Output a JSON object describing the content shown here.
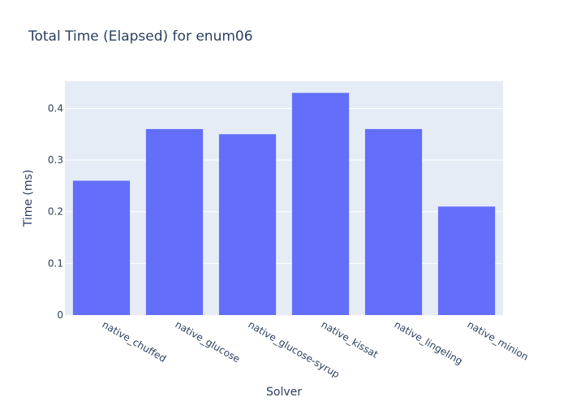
{
  "chart_data": {
    "type": "bar",
    "title": "Total Time (Elapsed) for enum06",
    "xlabel": "Solver",
    "ylabel": "Time (ms)",
    "categories": [
      "native_chuffed",
      "native_glucose",
      "native_glucose-syrup",
      "native_kissat",
      "native_lingeling",
      "native_minion"
    ],
    "values": [
      0.26,
      0.36,
      0.35,
      0.43,
      0.36,
      0.21
    ],
    "ylim": [
      0,
      0.4526
    ],
    "yticks": [
      0,
      0.1,
      0.2,
      0.3,
      0.4
    ],
    "ytick_labels": [
      "0",
      "0.1",
      "0.2",
      "0.3",
      "0.4"
    ],
    "grid": true,
    "colors": {
      "bar": "#636efa",
      "plot_background": "#e5ecf6",
      "gridline": "#ffffff",
      "text": "#2a3f5f"
    }
  }
}
